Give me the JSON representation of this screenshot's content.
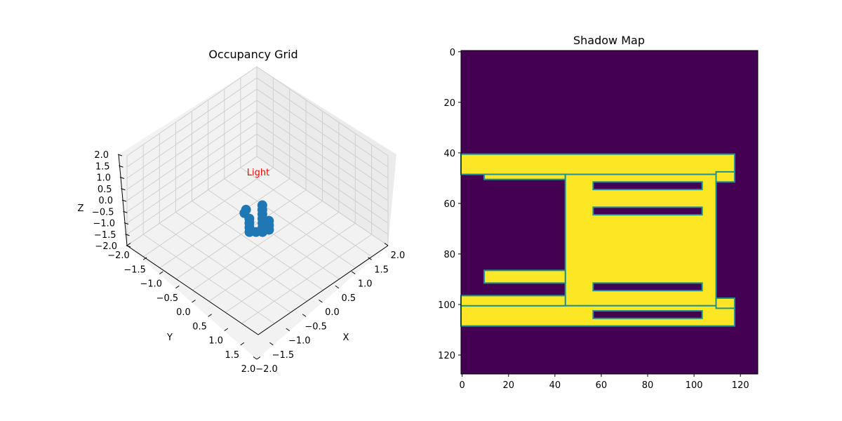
{
  "chart_data": [
    {
      "type": "scatter",
      "title": "Occupancy Grid",
      "xlabel": "X",
      "ylabel": "Y",
      "zlabel": "Z",
      "xlim": [
        -2.0,
        2.0
      ],
      "ylim": [
        -2.0,
        2.0
      ],
      "zlim": [
        -2.0,
        2.0
      ],
      "ticks": [
        "−2.0",
        "−1.5",
        "−1.0",
        "−0.5",
        "0.0",
        "0.5",
        "1.0",
        "1.5",
        "2.0"
      ],
      "grid": true,
      "color": "#1f77b4",
      "light_label": "Light",
      "light_color": "#ff0000",
      "points": [
        {
          "x": -0.2,
          "y": -0.35,
          "z": -0.75
        },
        {
          "x": -0.1,
          "y": -0.25,
          "z": -0.75
        },
        {
          "x": 0.0,
          "y": -0.15,
          "z": -0.75
        },
        {
          "x": 0.1,
          "y": -0.05,
          "z": -0.75
        },
        {
          "x": 0.2,
          "y": 0.05,
          "z": -0.75
        },
        {
          "x": 0.3,
          "y": 0.15,
          "z": -0.75
        },
        {
          "x": 0.4,
          "y": 0.25,
          "z": -0.75
        },
        {
          "x": 0.2,
          "y": 0.45,
          "z": -0.75
        },
        {
          "x": 0.1,
          "y": 0.35,
          "z": -0.75
        },
        {
          "x": 0.0,
          "y": 0.25,
          "z": -0.75
        },
        {
          "x": -0.1,
          "y": 0.15,
          "z": -0.75
        },
        {
          "x": 0.3,
          "y": 0.35,
          "z": -0.75
        },
        {
          "x": 0.25,
          "y": -0.1,
          "z": -0.75
        },
        {
          "x": 0.35,
          "y": 0.0,
          "z": -0.75
        },
        {
          "x": -0.3,
          "y": 0.1,
          "z": -0.75
        },
        {
          "x": -0.35,
          "y": 0.0,
          "z": -0.75
        },
        {
          "x": 0.45,
          "y": 0.1,
          "z": -0.75
        }
      ]
    },
    {
      "type": "heatmap",
      "title": "Shadow Map",
      "xticks": [
        "0",
        "20",
        "40",
        "60",
        "80",
        "100",
        "120"
      ],
      "yticks": [
        "0",
        "20",
        "40",
        "60",
        "80",
        "100",
        "120"
      ],
      "size": [
        128,
        128
      ],
      "colormap": "viridis",
      "colors": {
        "low": "#440154",
        "high": "#fde725",
        "edge": "#21918c"
      },
      "bright_regions": [
        {
          "x0": 0,
          "x1": 118,
          "y0": 41,
          "y1": 49
        },
        {
          "x0": 10,
          "x1": 45,
          "y0": 49,
          "y1": 51
        },
        {
          "x0": 45,
          "x1": 110,
          "y0": 49,
          "y1": 101
        },
        {
          "x0": 0,
          "x1": 118,
          "y0": 101,
          "y1": 109
        },
        {
          "x0": 10,
          "x1": 45,
          "y0": 87,
          "y1": 92
        },
        {
          "x0": 0,
          "x1": 45,
          "y0": 97,
          "y1": 101
        },
        {
          "x0": 110,
          "x1": 118,
          "y0": 48,
          "y1": 52
        },
        {
          "x0": 110,
          "x1": 118,
          "y0": 98,
          "y1": 102
        }
      ],
      "dark_regions": [
        {
          "x0": 57,
          "x1": 104,
          "y0": 52,
          "y1": 55
        },
        {
          "x0": 57,
          "x1": 104,
          "y0": 62,
          "y1": 65
        },
        {
          "x0": 57,
          "x1": 104,
          "y0": 92,
          "y1": 95
        },
        {
          "x0": 57,
          "x1": 104,
          "y0": 103,
          "y1": 106
        }
      ]
    }
  ]
}
